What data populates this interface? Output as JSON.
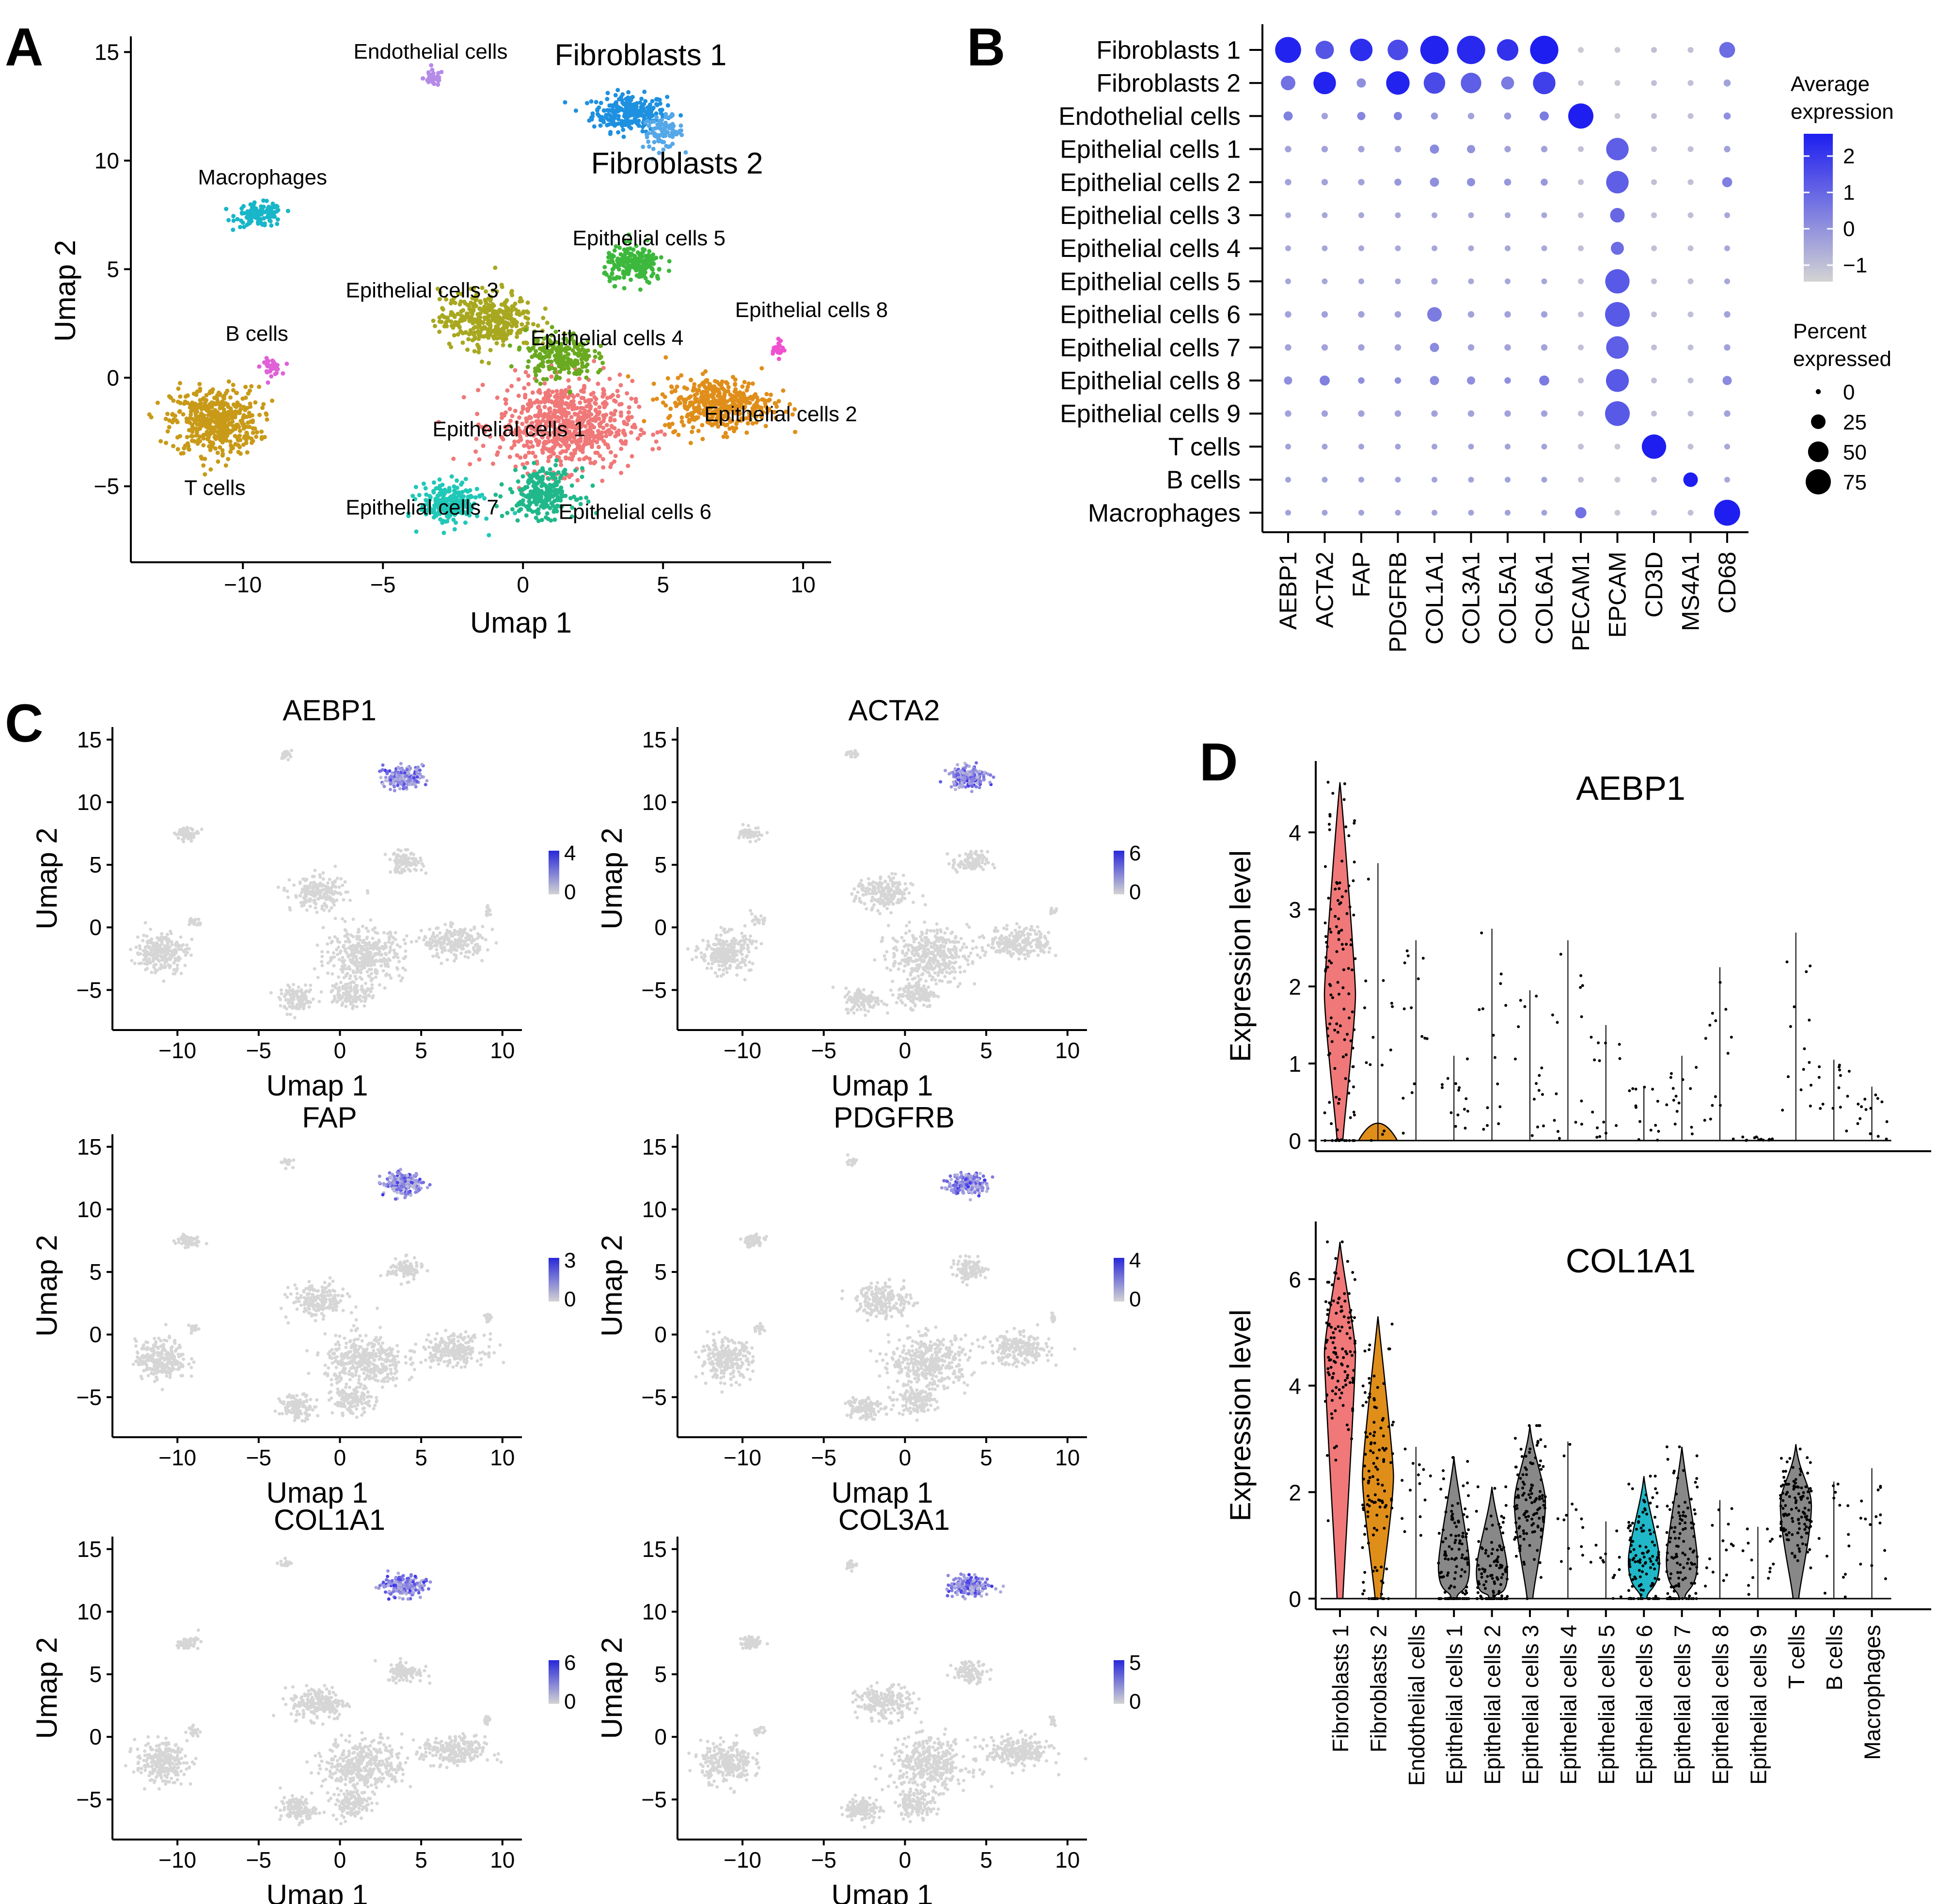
{
  "chart_data": [
    {
      "panel": "A",
      "type": "scatter",
      "title": "",
      "xlabel": "Umap 1",
      "ylabel": "Umap 2",
      "xlim": [
        -14,
        11
      ],
      "ylim": [
        -8.5,
        15.5
      ],
      "xticks": [
        -10,
        -5,
        0,
        5,
        10
      ],
      "yticks": [
        -5,
        0,
        5,
        10,
        15
      ],
      "clusters": [
        {
          "name": "Fibroblasts 1",
          "color": "#1E90E0",
          "center": [
            3.8,
            12.2
          ],
          "spread": [
            1.1,
            0.7
          ],
          "n": 260,
          "label_at": [
            4.2,
            14.4
          ],
          "big": true
        },
        {
          "name": "Fibroblasts 2",
          "color": "#55A8E8",
          "center": [
            5.0,
            11.3
          ],
          "spread": [
            0.6,
            0.6
          ],
          "n": 90,
          "label_at": [
            5.5,
            9.4
          ],
          "big": true
        },
        {
          "name": "Endothelial cells",
          "color": "#B58BE8",
          "center": [
            -3.2,
            13.8
          ],
          "spread": [
            0.3,
            0.3
          ],
          "n": 40,
          "label_at": [
            -3.3,
            14.7
          ],
          "big": false
        },
        {
          "name": "Macrophages",
          "color": "#18B6C8",
          "center": [
            -9.4,
            7.5
          ],
          "spread": [
            0.7,
            0.45
          ],
          "n": 120,
          "label_at": [
            -9.3,
            8.9
          ],
          "big": false
        },
        {
          "name": "B cells",
          "color": "#E060D8",
          "center": [
            -9.0,
            0.5
          ],
          "spread": [
            0.3,
            0.3
          ],
          "n": 40,
          "label_at": [
            -9.5,
            1.7
          ],
          "big": false
        },
        {
          "name": "T cells",
          "color": "#C89A18",
          "center": [
            -11.0,
            -2.0
          ],
          "spread": [
            1.3,
            1.3
          ],
          "n": 480,
          "label_at": [
            -11.0,
            -5.4
          ],
          "big": false
        },
        {
          "name": "Epithelial cells 1",
          "color": "#F07878",
          "center": [
            1.5,
            -2.2
          ],
          "spread": [
            2.0,
            1.7
          ],
          "n": 700,
          "label_at": [
            -0.5,
            -2.7
          ],
          "big": false
        },
        {
          "name": "Epithelial cells 2",
          "color": "#E08E1A",
          "center": [
            7.0,
            -1.2
          ],
          "spread": [
            1.6,
            1.0
          ],
          "n": 420,
          "label_at": [
            9.2,
            -2.0
          ],
          "big": false
        },
        {
          "name": "Epithelial cells 3",
          "color": "#A8A820",
          "center": [
            -1.3,
            2.7
          ],
          "spread": [
            1.4,
            1.1
          ],
          "n": 380,
          "label_at": [
            -3.6,
            3.7
          ],
          "big": false
        },
        {
          "name": "Epithelial cells 4",
          "color": "#6AAA20",
          "center": [
            1.3,
            1.0
          ],
          "spread": [
            1.0,
            0.9
          ],
          "n": 220,
          "label_at": [
            3.0,
            1.5
          ],
          "big": false
        },
        {
          "name": "Epithelial cells 5",
          "color": "#3CB83C",
          "center": [
            4.0,
            5.2
          ],
          "spread": [
            0.9,
            0.7
          ],
          "n": 200,
          "label_at": [
            4.5,
            6.1
          ],
          "big": false
        },
        {
          "name": "Epithelial cells 6",
          "color": "#20B88A",
          "center": [
            0.7,
            -5.3
          ],
          "spread": [
            1.0,
            0.9
          ],
          "n": 240,
          "label_at": [
            4.0,
            -6.5
          ],
          "big": false
        },
        {
          "name": "Epithelial cells 7",
          "color": "#20C8B8",
          "center": [
            -2.6,
            -5.8
          ],
          "spread": [
            0.9,
            0.8
          ],
          "n": 220,
          "label_at": [
            -3.6,
            -6.3
          ],
          "big": false
        },
        {
          "name": "Epithelial cells 8",
          "color": "#F050D0",
          "center": [
            9.1,
            1.3
          ],
          "spread": [
            0.15,
            0.3
          ],
          "n": 25,
          "label_at": [
            10.3,
            2.8
          ],
          "big": false
        }
      ]
    },
    {
      "panel": "B",
      "type": "dotplot",
      "rows": [
        "Fibroblasts 1",
        "Fibroblasts 2",
        "Endothelial cells",
        "Epithelial cells 1",
        "Epithelial cells 2",
        "Epithelial cells 3",
        "Epithelial cells 4",
        "Epithelial cells 5",
        "Epithelial cells 6",
        "Epithelial cells 7",
        "Epithelial cells 8",
        "Epithelial cells 9",
        "T cells",
        "B cells",
        "Macrophages"
      ],
      "columns": [
        "AEBP1",
        "ACTA2",
        "FAP",
        "PDGFRB",
        "COL1A1",
        "COL3A1",
        "COL5A1",
        "COL6A1",
        "PECAM1",
        "EPCAM",
        "CD3D",
        "MS4A1",
        "CD68"
      ],
      "average_expression": [
        [
          2.4,
          1.4,
          2.2,
          1.6,
          2.4,
          2.3,
          2.1,
          2.5,
          -1,
          -1,
          -0.8,
          -0.8,
          0.9
        ],
        [
          0.8,
          2.4,
          0.2,
          2.4,
          1.6,
          1.2,
          0.6,
          1.8,
          -1,
          -1,
          -0.8,
          -0.8,
          -0.2
        ],
        [
          0.5,
          -0.2,
          0.4,
          0.5,
          0,
          -0.2,
          0,
          0.6,
          2.5,
          -1,
          -0.8,
          -0.8,
          0.2
        ],
        [
          -0.2,
          -0.2,
          -0.2,
          -0.2,
          0.3,
          0.1,
          -0.2,
          -0.2,
          -0.8,
          1.2,
          -0.8,
          -0.8,
          -0.2
        ],
        [
          -0.2,
          -0.2,
          -0.2,
          0,
          0.2,
          0.2,
          0,
          0,
          -0.8,
          1.2,
          -0.8,
          -0.8,
          0.5
        ],
        [
          -0.3,
          -0.3,
          -0.3,
          -0.3,
          -0.3,
          -0.3,
          -0.3,
          -0.3,
          -0.8,
          1.0,
          -0.8,
          -0.8,
          -0.3
        ],
        [
          -0.3,
          -0.3,
          -0.3,
          -0.3,
          -0.3,
          -0.3,
          -0.3,
          -0.3,
          -0.8,
          0.9,
          -0.8,
          -0.8,
          -0.3
        ],
        [
          -0.3,
          -0.3,
          -0.3,
          -0.3,
          -0.3,
          -0.3,
          -0.3,
          -0.3,
          -0.8,
          1.3,
          -0.8,
          -0.8,
          -0.3
        ],
        [
          -0.2,
          -0.2,
          -0.2,
          -0.2,
          0.6,
          -0.2,
          -0.2,
          -0.2,
          -0.8,
          1.3,
          -0.8,
          -0.8,
          -0.2
        ],
        [
          -0.2,
          -0.2,
          -0.2,
          -0.2,
          0.3,
          -0.2,
          -0.2,
          -0.2,
          -0.8,
          1.2,
          -0.8,
          -0.8,
          -0.2
        ],
        [
          0.2,
          0.5,
          0.2,
          0.2,
          0.3,
          0.2,
          0.2,
          0.6,
          -0.8,
          1.3,
          -0.8,
          -0.8,
          0.3
        ],
        [
          -0.2,
          -0.2,
          -0.2,
          -0.2,
          -0.2,
          -0.2,
          -0.2,
          -0.2,
          -0.8,
          1.3,
          -0.8,
          -0.8,
          -0.2
        ],
        [
          -0.2,
          -0.2,
          -0.2,
          -0.2,
          -0.2,
          -0.2,
          -0.2,
          -0.2,
          -0.8,
          -1,
          2.5,
          -0.8,
          -0.3
        ],
        [
          -0.2,
          -0.2,
          -0.2,
          -0.2,
          -0.2,
          -0.2,
          -0.2,
          -0.2,
          -0.8,
          -1,
          -0.8,
          2.5,
          -0.3
        ],
        [
          -0.2,
          -0.2,
          -0.2,
          -0.2,
          -0.2,
          -0.2,
          -0.2,
          -0.2,
          0.8,
          -1,
          -0.8,
          -0.8,
          2.5
        ]
      ],
      "percent_expressed": [
        [
          80,
          40,
          60,
          50,
          95,
          95,
          55,
          95,
          4,
          4,
          4,
          4,
          30
        ],
        [
          25,
          60,
          10,
          65,
          55,
          50,
          20,
          60,
          4,
          4,
          4,
          4,
          6
        ],
        [
          10,
          5,
          8,
          8,
          6,
          5,
          6,
          10,
          75,
          4,
          4,
          4,
          6
        ],
        [
          5,
          5,
          5,
          5,
          10,
          8,
          5,
          5,
          4,
          60,
          4,
          4,
          5
        ],
        [
          5,
          5,
          5,
          6,
          10,
          8,
          6,
          6,
          4,
          60,
          4,
          4,
          12
        ],
        [
          4,
          4,
          4,
          4,
          4,
          4,
          4,
          4,
          4,
          25,
          4,
          4,
          4
        ],
        [
          4,
          4,
          4,
          4,
          4,
          4,
          4,
          4,
          4,
          20,
          4,
          4,
          4
        ],
        [
          4,
          4,
          4,
          4,
          5,
          4,
          4,
          4,
          4,
          70,
          4,
          4,
          4
        ],
        [
          5,
          5,
          5,
          5,
          25,
          5,
          5,
          5,
          4,
          72,
          4,
          4,
          5
        ],
        [
          5,
          5,
          5,
          5,
          10,
          5,
          5,
          5,
          4,
          60,
          4,
          4,
          5
        ],
        [
          8,
          12,
          5,
          5,
          10,
          8,
          5,
          12,
          4,
          62,
          4,
          4,
          10
        ],
        [
          5,
          5,
          5,
          5,
          5,
          5,
          5,
          5,
          4,
          72,
          4,
          4,
          5
        ],
        [
          4,
          4,
          4,
          4,
          4,
          4,
          4,
          4,
          4,
          4,
          70,
          4,
          4
        ],
        [
          4,
          4,
          4,
          4,
          4,
          4,
          4,
          4,
          4,
          4,
          4,
          25,
          4
        ],
        [
          4,
          4,
          4,
          4,
          4,
          4,
          4,
          4,
          15,
          4,
          4,
          4,
          80
        ]
      ],
      "legend": {
        "color_title_line1": "Average",
        "color_title_line2": "expression",
        "color_ticks": [
          "2",
          "1",
          "0",
          "−1"
        ],
        "size_title_line1": "Percent",
        "size_title_line2": "expressed",
        "size_ticks": [
          "0",
          "25",
          "50",
          "75"
        ]
      },
      "colors": {
        "low": "#D3D3D3",
        "high": "#1E1EF0"
      }
    },
    {
      "panel": "C",
      "type": "scatter",
      "xlabel": "Umap 1",
      "ylabel": "Umap 2",
      "xticks": [
        -10,
        -5,
        0,
        5,
        10
      ],
      "yticks": [
        -5,
        0,
        5,
        10,
        15
      ],
      "subplots": [
        {
          "gene": "AEBP1",
          "max": "4",
          "min": "0"
        },
        {
          "gene": "ACTA2",
          "max": "6",
          "min": "0"
        },
        {
          "gene": "FAP",
          "max": "3",
          "min": "0"
        },
        {
          "gene": "PDGFRB",
          "max": "4",
          "min": "0"
        },
        {
          "gene": "COL1A1",
          "max": "6",
          "min": "0"
        },
        {
          "gene": "COL3A1",
          "max": "5",
          "min": "0"
        }
      ]
    },
    {
      "panel": "D",
      "type": "violin",
      "ylabel": "Expression level",
      "categories": [
        "Fibroblasts 1",
        "Fibroblasts 2",
        "Endothelial cells",
        "Epithelial cells 1",
        "Epithelial cells 2",
        "Epithelial cells 3",
        "Epithelial cells 4",
        "Epithelial cells 5",
        "Epithelial cells 6",
        "Epithelial cells 7",
        "Epithelial cells 8",
        "Epithelial cells 9",
        "T cells",
        "B cells",
        "Macrophages"
      ],
      "series": [
        {
          "name": "AEBP1",
          "ylim": [
            0,
            4.8
          ],
          "yticks": [
            0,
            1,
            2,
            3,
            4
          ],
          "max_values": [
            4.65,
            3.6,
            2.6,
            1.1,
            2.75,
            1.95,
            2.6,
            1.5,
            0.7,
            1.1,
            2.25,
            0.05,
            2.7,
            1.05,
            0.7
          ],
          "median_values": [
            1.9,
            0.15,
            0,
            0,
            0,
            0,
            0,
            0,
            0,
            0,
            0,
            0,
            0,
            0,
            0
          ]
        },
        {
          "name": "COL1A1",
          "ylim": [
            0,
            6.9
          ],
          "yticks": [
            0,
            2,
            4,
            6
          ],
          "max_values": [
            6.7,
            5.3,
            2.85,
            2.65,
            2.1,
            3.25,
            2.95,
            1.45,
            2.3,
            2.85,
            1.85,
            1.35,
            2.9,
            2.2,
            2.45
          ],
          "median_values": [
            4.6,
            2.3,
            0,
            0.6,
            0.5,
            1.8,
            0,
            0,
            0.7,
            0.7,
            0,
            0,
            1.75,
            0,
            0
          ]
        }
      ],
      "colors": {
        "Fibroblasts 1": "#F07878",
        "Fibroblasts 2": "#E08E1A",
        "Epithelial cells 6": "#20B8C8"
      }
    }
  ],
  "panel_labels": [
    "A",
    "B",
    "C",
    "D"
  ]
}
